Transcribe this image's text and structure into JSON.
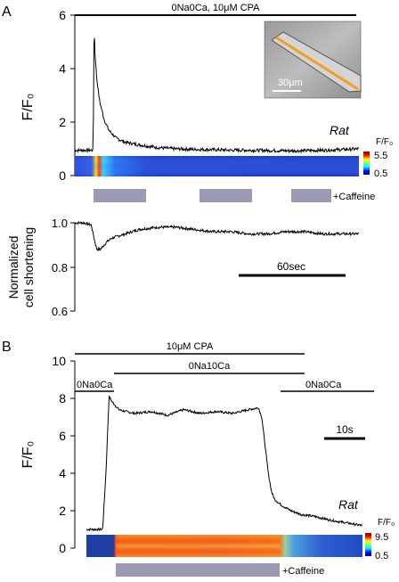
{
  "panels": [
    {
      "letter": "A",
      "condition_label": "0Na0Ca, 10μM CPA",
      "species_label": "Rat",
      "caffeine_label": "+Caffeine",
      "scale_bar_label": "60sec",
      "inset_scale_label": "30μm",
      "colorbar": {
        "title": "F/F₀",
        "max_label": "5.5",
        "min_label": "0.5"
      }
    },
    {
      "letter": "B",
      "top_bar_label": "10μM CPA",
      "segments": [
        "0Na0Ca",
        "0Na10Ca",
        "0Na0Ca"
      ],
      "species_label": "Rat",
      "caffeine_label": "+Caffeine",
      "scale_bar_label": "10s",
      "colorbar": {
        "title": "F/F₀",
        "max_label": "9.5",
        "min_label": "0.5"
      }
    }
  ],
  "chart_data": [
    {
      "type": "line",
      "ylabel": "F/F₀",
      "ylim": [
        0,
        6
      ],
      "yticks": [
        "0",
        "2",
        "4",
        "6"
      ],
      "x": [
        0,
        10,
        20,
        21,
        22,
        24,
        27,
        32,
        37,
        45,
        55,
        70,
        90,
        110,
        130,
        150,
        170,
        190,
        210,
        230,
        250,
        270,
        290,
        310
      ],
      "values": [
        0.95,
        0.95,
        0.95,
        5.6,
        4.6,
        3.6,
        2.8,
        2.1,
        1.7,
        1.4,
        1.25,
        1.15,
        1.05,
        1.0,
        0.98,
        0.97,
        0.95,
        0.95,
        0.94,
        0.93,
        0.93,
        0.95,
        0.97,
        1.0
      ]
    },
    {
      "type": "line",
      "ylabel": "Normalized cell shortening",
      "ylim": [
        0.6,
        1.0
      ],
      "yticks": [
        "0.6",
        "0.8",
        "1.0"
      ],
      "x": [
        0,
        10,
        18,
        21,
        24,
        28,
        34,
        40,
        55,
        70,
        90,
        110,
        130,
        150,
        170,
        190,
        210,
        230,
        250,
        270,
        290,
        310
      ],
      "values": [
        1.0,
        1.0,
        0.99,
        0.93,
        0.88,
        0.88,
        0.91,
        0.93,
        0.95,
        0.97,
        0.98,
        0.98,
        0.97,
        0.96,
        0.96,
        0.95,
        0.95,
        0.96,
        0.96,
        0.95,
        0.95,
        0.95
      ]
    },
    {
      "type": "line",
      "ylabel": "F/F₀",
      "ylim": [
        0,
        10
      ],
      "yticks": [
        "0",
        "2",
        "4",
        "6",
        "8",
        "10"
      ],
      "x": [
        0,
        5,
        6,
        7,
        8,
        9,
        10,
        12,
        15,
        20,
        25,
        30,
        35,
        40,
        45,
        50,
        53,
        54,
        55,
        56,
        57,
        58,
        60,
        63,
        66,
        70,
        75,
        80,
        85
      ],
      "values": [
        1.0,
        1.0,
        4.0,
        8.1,
        7.8,
        7.6,
        7.4,
        7.3,
        7.2,
        7.3,
        7.1,
        7.4,
        7.2,
        7.3,
        7.2,
        7.4,
        7.5,
        7.0,
        5.5,
        4.0,
        3.0,
        2.6,
        2.3,
        2.0,
        1.8,
        1.7,
        1.5,
        1.35,
        1.2
      ]
    }
  ]
}
